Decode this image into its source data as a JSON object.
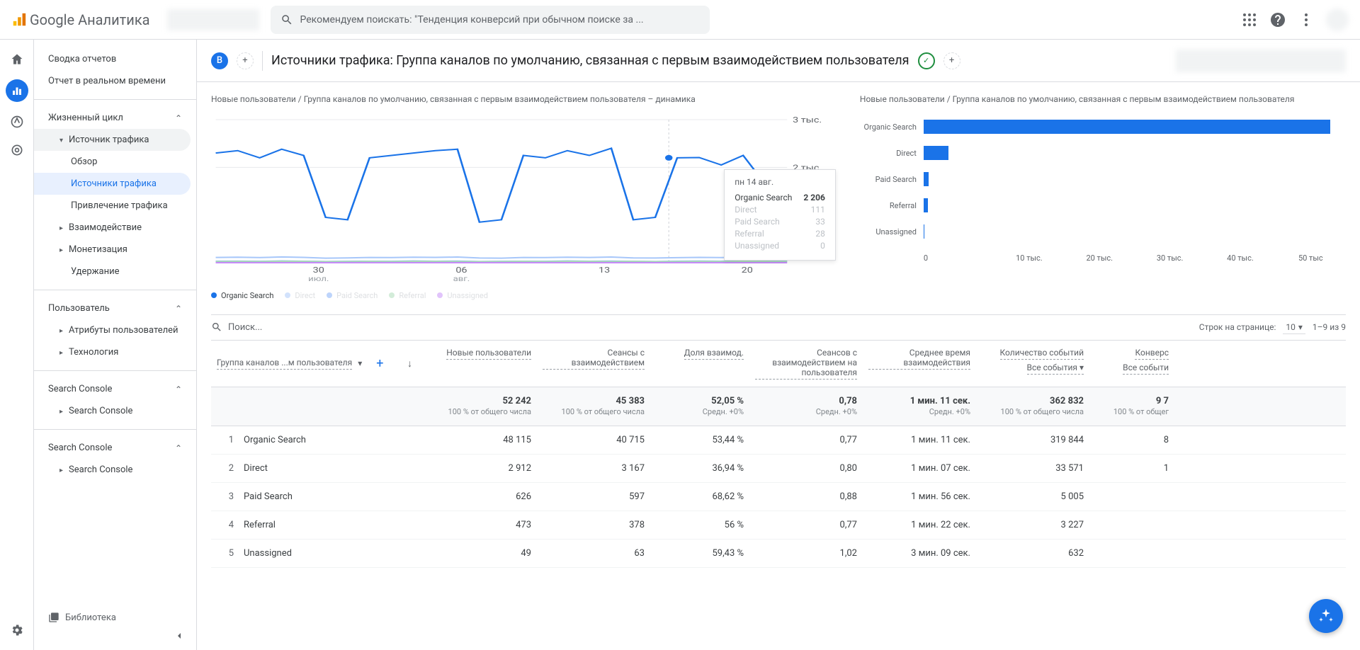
{
  "topbar": {
    "brand": "Google Аналитика",
    "search_placeholder": "Рекомендуем поискать: \"Тенденция конверсий при обычном поиске за ..."
  },
  "sidebar": {
    "summary": "Сводка отчетов",
    "realtime": "Отчет в реальном времени",
    "lifecycle": "Жизненный цикл",
    "traffic_source": "Источник трафика",
    "overview": "Обзор",
    "traffic_sources": "Источники трафика",
    "acquisition": "Привлечение трафика",
    "engagement": "Взаимодействие",
    "monetization": "Монетизация",
    "retention": "Удержание",
    "user": "Пользователь",
    "user_attrs": "Атрибуты пользователей",
    "technology": "Технология",
    "search_console_head": "Search Console",
    "search_console_item": "Search Console",
    "library": "Библиотека"
  },
  "header": {
    "badge": "B",
    "title": "Источники трафика: Группа каналов по умолчанию, связанная с первым взаимодействием пользователя"
  },
  "line_chart": {
    "title": "Новые пользователи / Группа каналов по умолчанию, связанная с первым взаимодействием пользователя – динамика",
    "y_ticks": [
      "3 тыс.",
      "2 тыс."
    ],
    "x_ticks": [
      {
        "main": "30",
        "sub": "июл."
      },
      {
        "main": "06",
        "sub": "авг."
      },
      {
        "main": "13",
        "sub": ""
      },
      {
        "main": "20",
        "sub": ""
      }
    ],
    "x_positions": [
      0.18,
      0.43,
      0.68,
      0.93
    ],
    "ylim": [
      0,
      3000
    ],
    "series": [
      {
        "name": "Organic Search",
        "color": "#1a73e8",
        "points": [
          2300,
          2350,
          2200,
          2380,
          2250,
          950,
          900,
          2200,
          2250,
          2300,
          2350,
          2380,
          850,
          900,
          2250,
          2200,
          2350,
          2250,
          2400,
          900,
          950,
          2200,
          2206,
          2050,
          2250,
          1650,
          950
        ]
      },
      {
        "name": "Direct",
        "color": "#a7c7fa",
        "points": [
          110,
          115,
          108,
          120,
          112,
          95,
          100,
          110,
          108,
          115,
          112,
          118,
          98,
          95,
          110,
          108,
          115,
          110,
          118,
          100,
          98,
          105,
          111,
          108,
          115,
          108,
          112
        ]
      },
      {
        "name": "Paid Search",
        "color": "#7daaf8",
        "points": [
          30,
          32,
          28,
          35,
          30,
          25,
          28,
          30,
          28,
          35,
          30,
          32,
          25,
          28,
          30,
          28,
          35,
          30,
          32,
          28,
          25,
          30,
          33,
          30,
          35,
          30,
          28
        ]
      },
      {
        "name": "Referral",
        "color": "#a8dab5",
        "points": [
          25,
          28,
          25,
          30,
          28,
          22,
          25,
          28,
          25,
          30,
          28,
          25,
          22,
          25,
          28,
          25,
          30,
          28,
          25,
          28,
          22,
          25,
          28,
          25,
          30,
          28,
          25
        ]
      },
      {
        "name": "Unassigned",
        "color": "#c58af9",
        "points": [
          0,
          0,
          0,
          0,
          0,
          0,
          0,
          0,
          0,
          0,
          0,
          0,
          0,
          0,
          0,
          0,
          0,
          0,
          0,
          0,
          0,
          0,
          0,
          0,
          0,
          0,
          0
        ]
      }
    ],
    "cursor_x": 0.793,
    "tooltip": {
      "date": "пн 14 авг.",
      "rows": [
        {
          "lbl": "Organic Search",
          "val": "2 206",
          "first": true
        },
        {
          "lbl": "Direct",
          "val": "111",
          "dim": true
        },
        {
          "lbl": "Paid Search",
          "val": "33",
          "dim": true
        },
        {
          "lbl": "Referral",
          "val": "28",
          "dim": true
        },
        {
          "lbl": "Unassigned",
          "val": "0",
          "dim": true
        }
      ]
    },
    "legend": [
      "Organic Search",
      "Direct",
      "Paid Search",
      "Referral",
      "Unassigned"
    ],
    "legend_colors": [
      "#1a73e8",
      "#a7c7fa",
      "#7daaf8",
      "#a8dab5",
      "#c58af9"
    ]
  },
  "bar_chart": {
    "title": "Новые пользователи / Группа каналов по умолчанию, связанная с первым взаимодействием пользователя",
    "max": 50000,
    "bars": [
      {
        "label": "Organic Search",
        "value": 48115
      },
      {
        "label": "Direct",
        "value": 2912
      },
      {
        "label": "Paid Search",
        "value": 626
      },
      {
        "label": "Referral",
        "value": 473
      },
      {
        "label": "Unassigned",
        "value": 49
      }
    ],
    "color": "#1a73e8",
    "x_ticks": [
      "0",
      "10 тыс.",
      "20 тыс.",
      "30 тыс.",
      "40 тыс.",
      "50 тыс"
    ]
  },
  "table": {
    "search_placeholder": "Поиск...",
    "rows_per_page_label": "Строк на странице:",
    "rows_per_page_value": "10",
    "range": "1–9 из 9",
    "dim_header": "Группа каналов ...м пользователя",
    "columns": [
      "Новые пользователи",
      "Сеансы с взаимодействием",
      "Доля взаимод.",
      "Сеансов с взаимодействием на пользователя",
      "Среднее время взаимодействия",
      "Количество событий",
      "Конверс"
    ],
    "event_selector": "Все события",
    "event_selector2": "Все событи",
    "totals": {
      "label_empty": "",
      "cells": [
        {
          "v": "52 242",
          "s": "100 % от общего числа"
        },
        {
          "v": "45 383",
          "s": "100 % от общего числа"
        },
        {
          "v": "52,05 %",
          "s": "Средн. +0%"
        },
        {
          "v": "0,78",
          "s": "Средн. +0%"
        },
        {
          "v": "1 мин. 11 сек.",
          "s": "Средн. +0%"
        },
        {
          "v": "362 832",
          "s": "100 % от общего числа"
        },
        {
          "v": "9 7",
          "s": "100 % от общег"
        }
      ]
    },
    "rows": [
      {
        "idx": "1",
        "name": "Organic Search",
        "c": [
          "48 115",
          "40 715",
          "53,44 %",
          "0,77",
          "1 мин. 11 сек.",
          "319 844",
          "8"
        ]
      },
      {
        "idx": "2",
        "name": "Direct",
        "c": [
          "2 912",
          "3 167",
          "36,94 %",
          "0,80",
          "1 мин. 07 сек.",
          "33 571",
          "1"
        ]
      },
      {
        "idx": "3",
        "name": "Paid Search",
        "c": [
          "626",
          "597",
          "68,62 %",
          "0,88",
          "1 мин. 56 сек.",
          "5 005",
          ""
        ]
      },
      {
        "idx": "4",
        "name": "Referral",
        "c": [
          "473",
          "378",
          "56 %",
          "0,77",
          "1 мин. 22 сек.",
          "3 227",
          ""
        ]
      },
      {
        "idx": "5",
        "name": "Unassigned",
        "c": [
          "49",
          "63",
          "59,43 %",
          "1,02",
          "3 мин. 09 сек.",
          "632",
          ""
        ]
      }
    ]
  }
}
